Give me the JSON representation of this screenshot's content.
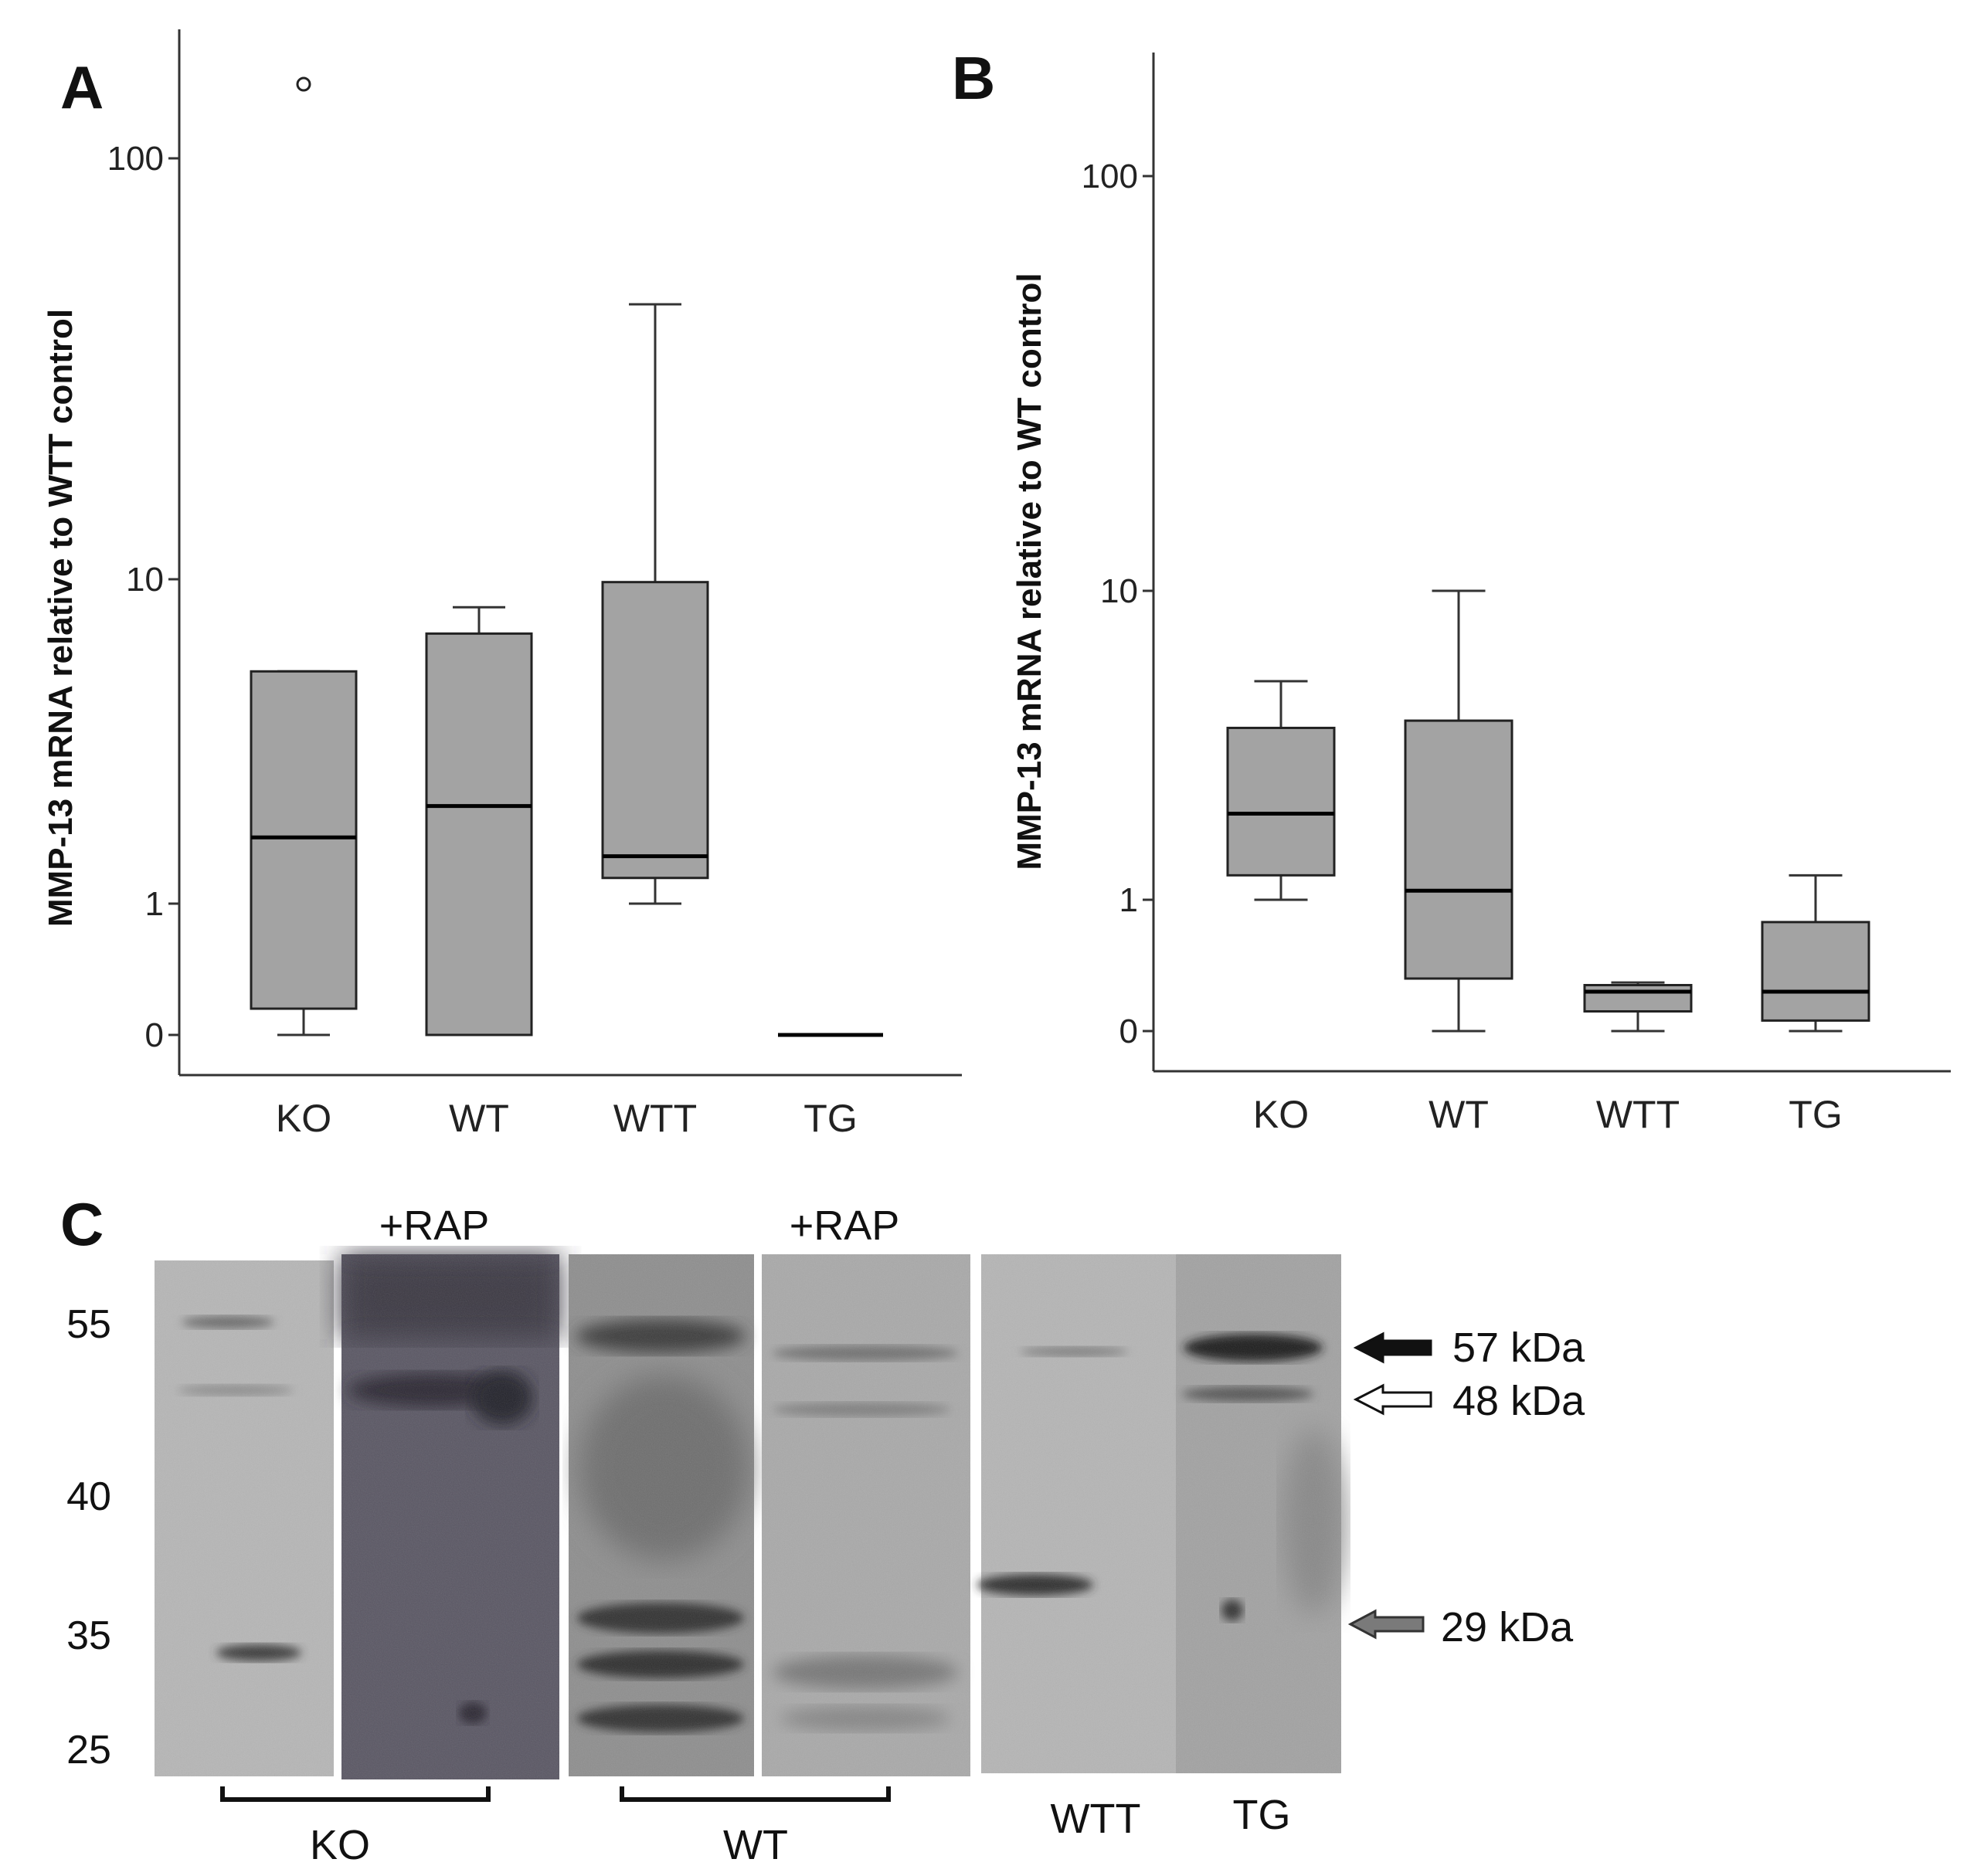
{
  "panels": [
    {
      "letter": "A",
      "ylabel": "MMP-13 mRNA relative to WTT control",
      "yticks": [
        {
          "label": "100",
          "value": 100
        },
        {
          "label": "10",
          "value": 10
        },
        {
          "label": "1",
          "value": 1
        },
        {
          "label": "0",
          "value": 0
        }
      ]
    },
    {
      "letter": "B",
      "ylabel": "MMP-13 mRNA relative to WT control",
      "yticks": [
        {
          "label": "100",
          "value": 100
        },
        {
          "label": "10",
          "value": 10
        },
        {
          "label": "1",
          "value": 1
        },
        {
          "label": "0",
          "value": 0
        }
      ]
    }
  ],
  "chart_data": [
    {
      "type": "box",
      "panel": "A",
      "ylabel": "MMP-13 mRNA relative to WTT control",
      "yscale": "log",
      "categories": [
        "KO",
        "WT",
        "WTT",
        "TG"
      ],
      "boxes": [
        {
          "category": "KO",
          "min": 0,
          "q1": 0.2,
          "median": 1.6,
          "q3": 5.2,
          "max": 5.2,
          "outliers": [
            150
          ]
        },
        {
          "category": "WT",
          "min": 0,
          "q1": 0,
          "median": 2.0,
          "q3": 6.8,
          "max": 8.2,
          "outliers": []
        },
        {
          "category": "WTT",
          "min": 1.0,
          "q1": 1.2,
          "median": 1.4,
          "q3": 9.8,
          "max": 45,
          "outliers": []
        },
        {
          "category": "TG",
          "min": 0,
          "q1": 0,
          "median": 0,
          "q3": 0,
          "max": 0,
          "outliers": []
        }
      ]
    },
    {
      "type": "box",
      "panel": "B",
      "ylabel": "MMP-13 mRNA relative to WT control",
      "yscale": "log",
      "categories": [
        "KO",
        "WT",
        "WTT",
        "TG"
      ],
      "boxes": [
        {
          "category": "KO",
          "min": 1.0,
          "q1": 1.2,
          "median": 1.9,
          "q3": 3.6,
          "max": 5.1,
          "outliers": []
        },
        {
          "category": "WT",
          "min": 0,
          "q1": 0.4,
          "median": 1.07,
          "q3": 3.8,
          "max": 10,
          "outliers": []
        },
        {
          "category": "WTT",
          "min": 0,
          "q1": 0.15,
          "median": 0.3,
          "q3": 0.35,
          "max": 0.37,
          "outliers": []
        },
        {
          "category": "TG",
          "min": 0,
          "q1": 0.08,
          "median": 0.3,
          "q3": 0.83,
          "max": 1.2,
          "outliers": []
        }
      ]
    }
  ],
  "blot": {
    "letter": "C",
    "rap_labels": [
      "+RAP",
      "+RAP"
    ],
    "mw_markers": [
      "55",
      "40",
      "35",
      "25"
    ],
    "size_arrows": [
      "57 kDa",
      "48 kDa",
      "29 kDa"
    ],
    "arrow_colors": [
      "#111111",
      "#ffffff",
      "#7a7a7a"
    ],
    "group_labels": [
      "KO",
      "WT",
      "WTT",
      "TG"
    ]
  }
}
